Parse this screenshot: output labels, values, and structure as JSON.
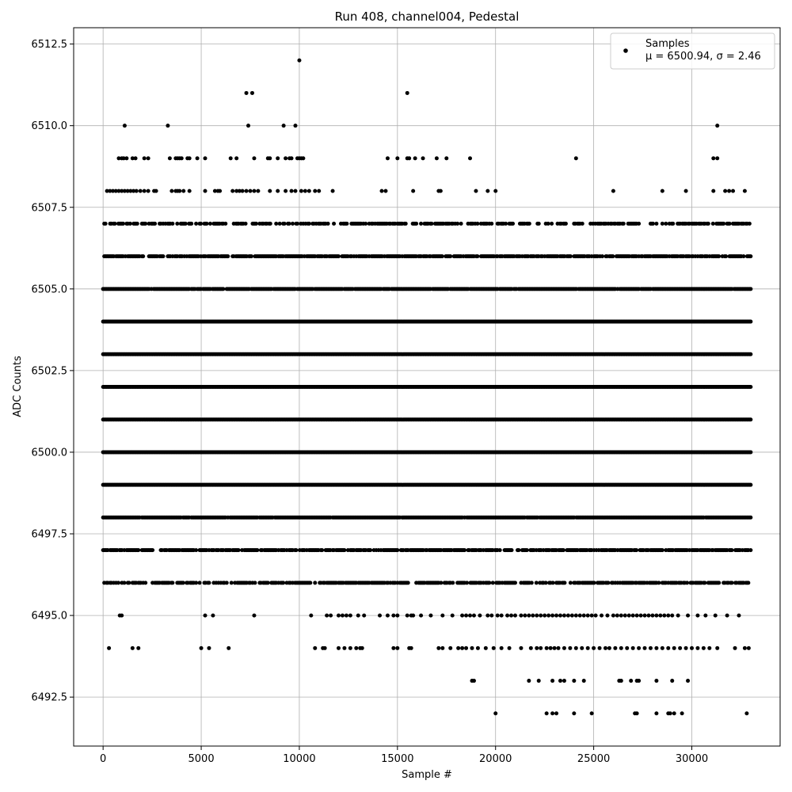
{
  "chart_data": {
    "type": "scatter",
    "title": "Run 408, channel004, Pedestal",
    "xlabel": "Sample #",
    "ylabel": "ADC Counts",
    "xlim": [
      -1500,
      34500
    ],
    "ylim": [
      6491.0,
      6513.0
    ],
    "x_ticks": [
      0,
      5000,
      10000,
      15000,
      20000,
      25000,
      30000
    ],
    "y_ticks": [
      6492.5,
      6495.0,
      6497.5,
      6500.0,
      6502.5,
      6505.0,
      6507.5,
      6510.0,
      6512.5
    ],
    "y_tick_labels": [
      "6492.5",
      "6495.0",
      "6497.5",
      "6500.0",
      "6502.5",
      "6505.0",
      "6507.5",
      "6510.0",
      "6512.5"
    ],
    "grid": true,
    "legend": {
      "placement": "top-right",
      "entries": [
        {
          "name": "Samples",
          "stats": "μ = 6500.94, σ = 2.46"
        }
      ]
    },
    "series": [
      {
        "name": "Samples",
        "marker_color": "#000000",
        "n_samples": 33000,
        "levels": [
          {
            "y": 6512,
            "x": [
              10000
            ]
          },
          {
            "y": 6511,
            "x": [
              7300,
              7600,
              15500
            ]
          },
          {
            "y": 6510,
            "x": [
              1100,
              3300,
              7400,
              9200,
              9800,
              31300
            ]
          },
          {
            "y": 6509,
            "x": [
              800,
              950,
              1050,
              1200,
              1500,
              1650,
              2100,
              2300,
              3400,
              3700,
              3800,
              3900,
              4000,
              4300,
              4400,
              4800,
              5200,
              6500,
              6800,
              7700,
              8400,
              8500,
              8900,
              9300,
              9500,
              9600,
              9900,
              10000,
              10100,
              10200,
              14500,
              15000,
              15500,
              15600,
              15900,
              16300,
              17000,
              17500,
              18700,
              24100,
              31100,
              31300
            ]
          },
          {
            "y": 6508,
            "x": [
              200,
              350,
              500,
              650,
              800,
              950,
              1100,
              1250,
              1400,
              1550,
              1700,
              1900,
              2100,
              2300,
              2600,
              2700,
              3500,
              3700,
              3800,
              3900,
              4100,
              4400,
              5200,
              5700,
              5850,
              5950,
              6600,
              6800,
              6950,
              7100,
              7300,
              7500,
              7700,
              7900,
              8500,
              8900,
              9300,
              9600,
              9800,
              10100,
              10300,
              10500,
              10800,
              11000,
              11700,
              14200,
              14400,
              15800,
              17100,
              17200,
              19000,
              19600,
              20000,
              26000,
              28500,
              29700,
              31100,
              31700,
              31900,
              32100,
              32700
            ]
          },
          {
            "y": 6507,
            "density": 0.55
          },
          {
            "y": 6506,
            "density": 0.8
          },
          {
            "y": 6505,
            "density": 0.95
          },
          {
            "y": 6504,
            "density": 1.0
          },
          {
            "y": 6503,
            "density": 1.0
          },
          {
            "y": 6502,
            "density": 1.0
          },
          {
            "y": 6501,
            "density": 1.0
          },
          {
            "y": 6500,
            "density": 1.0
          },
          {
            "y": 6499,
            "density": 1.0
          },
          {
            "y": 6498,
            "density": 0.98
          },
          {
            "y": 6497,
            "density": 0.8
          },
          {
            "y": 6496,
            "density": 0.65
          },
          {
            "y": 6495,
            "x": [
              850,
              950,
              5200,
              5600,
              7700,
              10600,
              11400,
              11600,
              12000,
              12200,
              12400,
              12600,
              13000,
              13300,
              14100,
              14500,
              14800,
              15000,
              15500,
              15700,
              15800,
              16200,
              16700,
              17300,
              17800,
              18300,
              18500,
              18700,
              18900,
              19200,
              19600,
              19800,
              20100,
              20300,
              20600,
              20800,
              21000,
              21300,
              21500,
              21700,
              21900,
              22100,
              22300,
              22500,
              22700,
              22900,
              23100,
              23300,
              23500,
              23700,
              23900,
              24100,
              24300,
              24500,
              24700,
              24900,
              25100,
              25400,
              25700,
              26000,
              26200,
              26400,
              26600,
              26800,
              27000,
              27200,
              27400,
              27600,
              27800,
              28000,
              28200,
              28400,
              28600,
              28800,
              29000,
              29300,
              29800,
              30300,
              30700,
              31200,
              31800,
              32400
            ]
          },
          {
            "y": 6494,
            "x": [
              300,
              1500,
              1800,
              5000,
              5400,
              6400,
              10800,
              11200,
              11300,
              12000,
              12300,
              12600,
              12900,
              13100,
              13200,
              14800,
              15000,
              15600,
              15700,
              17100,
              17300,
              17700,
              18100,
              18300,
              18500,
              18800,
              19100,
              19500,
              19900,
              20300,
              20700,
              21300,
              21800,
              22100,
              22300,
              22600,
              22800,
              23000,
              23200,
              23500,
              23800,
              24100,
              24400,
              24700,
              25000,
              25300,
              25600,
              25800,
              26100,
              26400,
              26700,
              27000,
              27300,
              27600,
              27900,
              28200,
              28500,
              28800,
              29100,
              29400,
              29700,
              30000,
              30300,
              30600,
              30900,
              31300,
              32200,
              32700,
              32900
            ]
          },
          {
            "y": 6493,
            "x": [
              18800,
              18900,
              21700,
              22200,
              22900,
              23300,
              23500,
              24000,
              24500,
              26300,
              26400,
              26900,
              27200,
              27300,
              28200,
              29000,
              29800
            ]
          },
          {
            "y": 6492,
            "x": [
              20000,
              22600,
              22900,
              23100,
              24000,
              24900,
              27100,
              27200,
              28200,
              28800,
              28900,
              29100,
              29500,
              32800
            ]
          }
        ]
      }
    ]
  }
}
